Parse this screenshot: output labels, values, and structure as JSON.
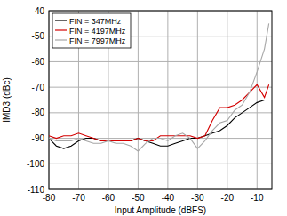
{
  "chart_data": {
    "type": "line",
    "x_label": "Input Amplitude (dBFS)",
    "y_label": "IMD3 (dBc)",
    "x": [
      -80,
      -77.5,
      -75,
      -72.5,
      -70,
      -67.5,
      -65,
      -62.5,
      -60,
      -57.5,
      -55,
      -52.5,
      -50,
      -47.5,
      -45,
      -42.5,
      -40,
      -37.5,
      -35,
      -32.5,
      -30,
      -27.5,
      -25,
      -22.5,
      -20,
      -17.5,
      -15,
      -12.5,
      -10,
      -7.5,
      -6
    ],
    "series": [
      {
        "name": "FIN = 347MHz",
        "color": "#000000",
        "values": [
          -90,
          -93,
          -94,
          -93,
          -91,
          -90,
          -90,
          -91,
          -91,
          -91,
          -91,
          -91,
          -90,
          -91,
          -92,
          -93,
          -93,
          -92,
          -91,
          -90,
          -90,
          -89,
          -88,
          -87,
          -85,
          -82,
          -80,
          -78,
          -76,
          -75,
          -75
        ]
      },
      {
        "name": "FIN = 4197MHz",
        "color": "#d40000",
        "values": [
          -89,
          -90,
          -89,
          -89,
          -88,
          -89,
          -90,
          -91,
          -91,
          -91,
          -91,
          -91,
          -90,
          -91,
          -91,
          -89,
          -89,
          -89,
          -89,
          -89,
          -90,
          -89,
          -83,
          -78,
          -78,
          -77,
          -75,
          -72,
          -69,
          -74,
          -69
        ]
      },
      {
        "name": "FIN = 7997MHz",
        "color": "#a6a6a6",
        "values": [
          -90,
          -91,
          -91,
          -91,
          -90,
          -91,
          -92,
          -92,
          -91,
          -92,
          -92,
          -93,
          -95,
          -92,
          -90,
          -90,
          -91,
          -89,
          -88,
          -90,
          -94,
          -91,
          -87,
          -84,
          -83,
          -79,
          -77,
          -72,
          -64,
          -55,
          -45
        ]
      }
    ],
    "xlim": [
      -80,
      -5
    ],
    "xticks": [
      -80,
      -70,
      -60,
      -50,
      -40,
      -30,
      -20,
      -10
    ],
    "ylim": [
      -110,
      -40
    ],
    "yticks": [
      -110,
      -100,
      -90,
      -80,
      -70,
      -60,
      -50,
      -40
    ],
    "grid": true,
    "legend": "upper left"
  }
}
